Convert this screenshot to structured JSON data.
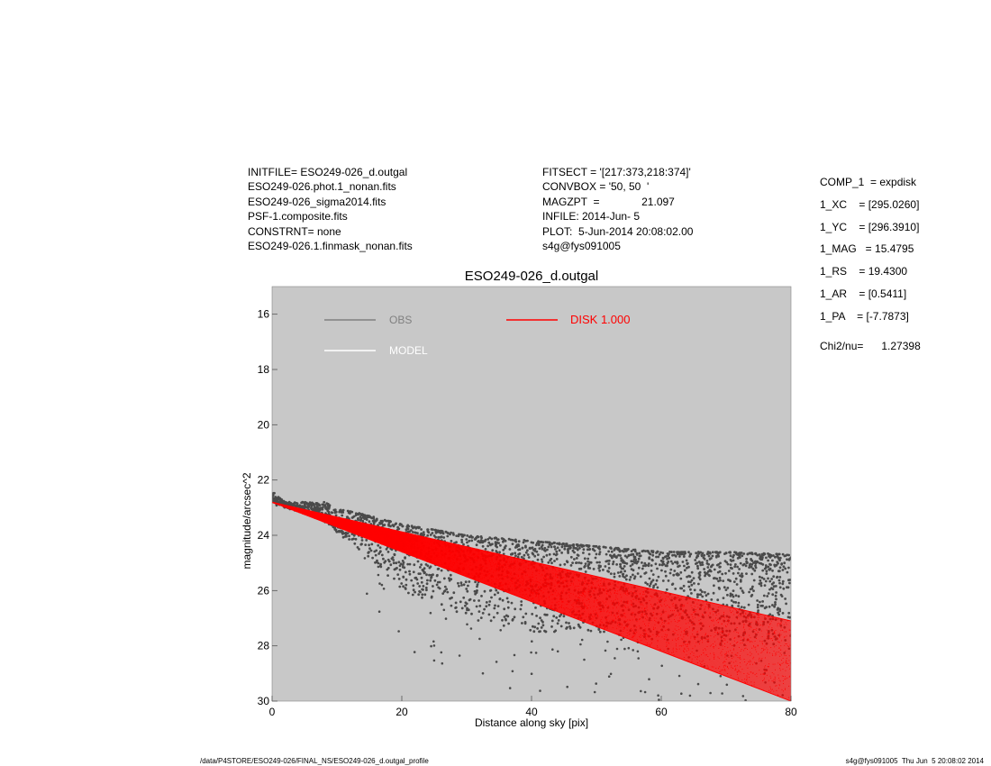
{
  "header": {
    "left": [
      "INITFILE= ESO249-026_d.outgal",
      "ESO249-026.phot.1_nonan.fits",
      "ESO249-026_sigma2014.fits",
      "PSF-1.composite.fits",
      "CONSTRNT= none",
      "ESO249-026.1.finmask_nonan.fits"
    ],
    "mid": [
      "FITSECT = '[217:373,218:374]'",
      "CONVBOX = '50, 50  '",
      "MAGZPT  =              21.097",
      "INFILE: 2014-Jun- 5",
      "PLOT:  5-Jun-2014 20:08:02.00",
      "s4g@fys091005"
    ],
    "params": [
      "COMP_1  = expdisk",
      "1_XC    = [295.0260]",
      "1_YC    = [296.3910]",
      "1_MAG   = 15.4795",
      "1_RS    = 19.4300",
      "1_AR    = [0.5411]",
      "1_PA    = [-7.7873]"
    ],
    "chi2": "Chi2/nu=      1.27398"
  },
  "footer": {
    "left": "/data/P4STORE/ESO249-026/FINAL_NS/ESO249-026_d.outgal_profile",
    "right": "s4g@fys091005  Thu Jun  5 20:08:02 2014"
  },
  "colors": {
    "plot_bg": "#c8c8c8",
    "obs": "#4a4a4a",
    "obs_legend": "#808080",
    "model": "#ffffff",
    "disk": "#ff0000"
  },
  "chart_data": {
    "type": "scatter",
    "title": "ESO249-026_d.outgal",
    "xlabel": "Distance along sky [pix]",
    "ylabel": "magnitude/arcsec^2",
    "xlim": [
      0,
      80
    ],
    "ylim": [
      30,
      15
    ],
    "y_inverted": true,
    "xticks": [
      0,
      20,
      40,
      60,
      80
    ],
    "yticks": [
      16,
      18,
      20,
      22,
      24,
      26,
      28,
      30
    ],
    "legend": [
      {
        "label": "OBS",
        "color": "#808080"
      },
      {
        "label": "MODEL",
        "color": "#ffffff"
      },
      {
        "label": "DISK  1.000",
        "color": "#ff0000"
      }
    ],
    "series": [
      {
        "name": "OBS",
        "kind": "points",
        "x": [
          0,
          2,
          5,
          8,
          10,
          15,
          20,
          30,
          40,
          50,
          60,
          70,
          80
        ],
        "y_upper": [
          22.4,
          22.8,
          22.8,
          22.8,
          23.0,
          23.3,
          23.6,
          24.0,
          24.2,
          24.4,
          24.6,
          24.6,
          24.7
        ],
        "y_lower": [
          22.9,
          23.0,
          23.2,
          23.5,
          23.9,
          24.8,
          26.0,
          27.0,
          27.5,
          27.5,
          27.8,
          28.0,
          28.0
        ]
      },
      {
        "name": "DISK  1.000",
        "kind": "band",
        "x": [
          0,
          80
        ],
        "y_upper": [
          22.8,
          27.1
        ],
        "y_lower": [
          22.8,
          30.0
        ]
      }
    ]
  }
}
